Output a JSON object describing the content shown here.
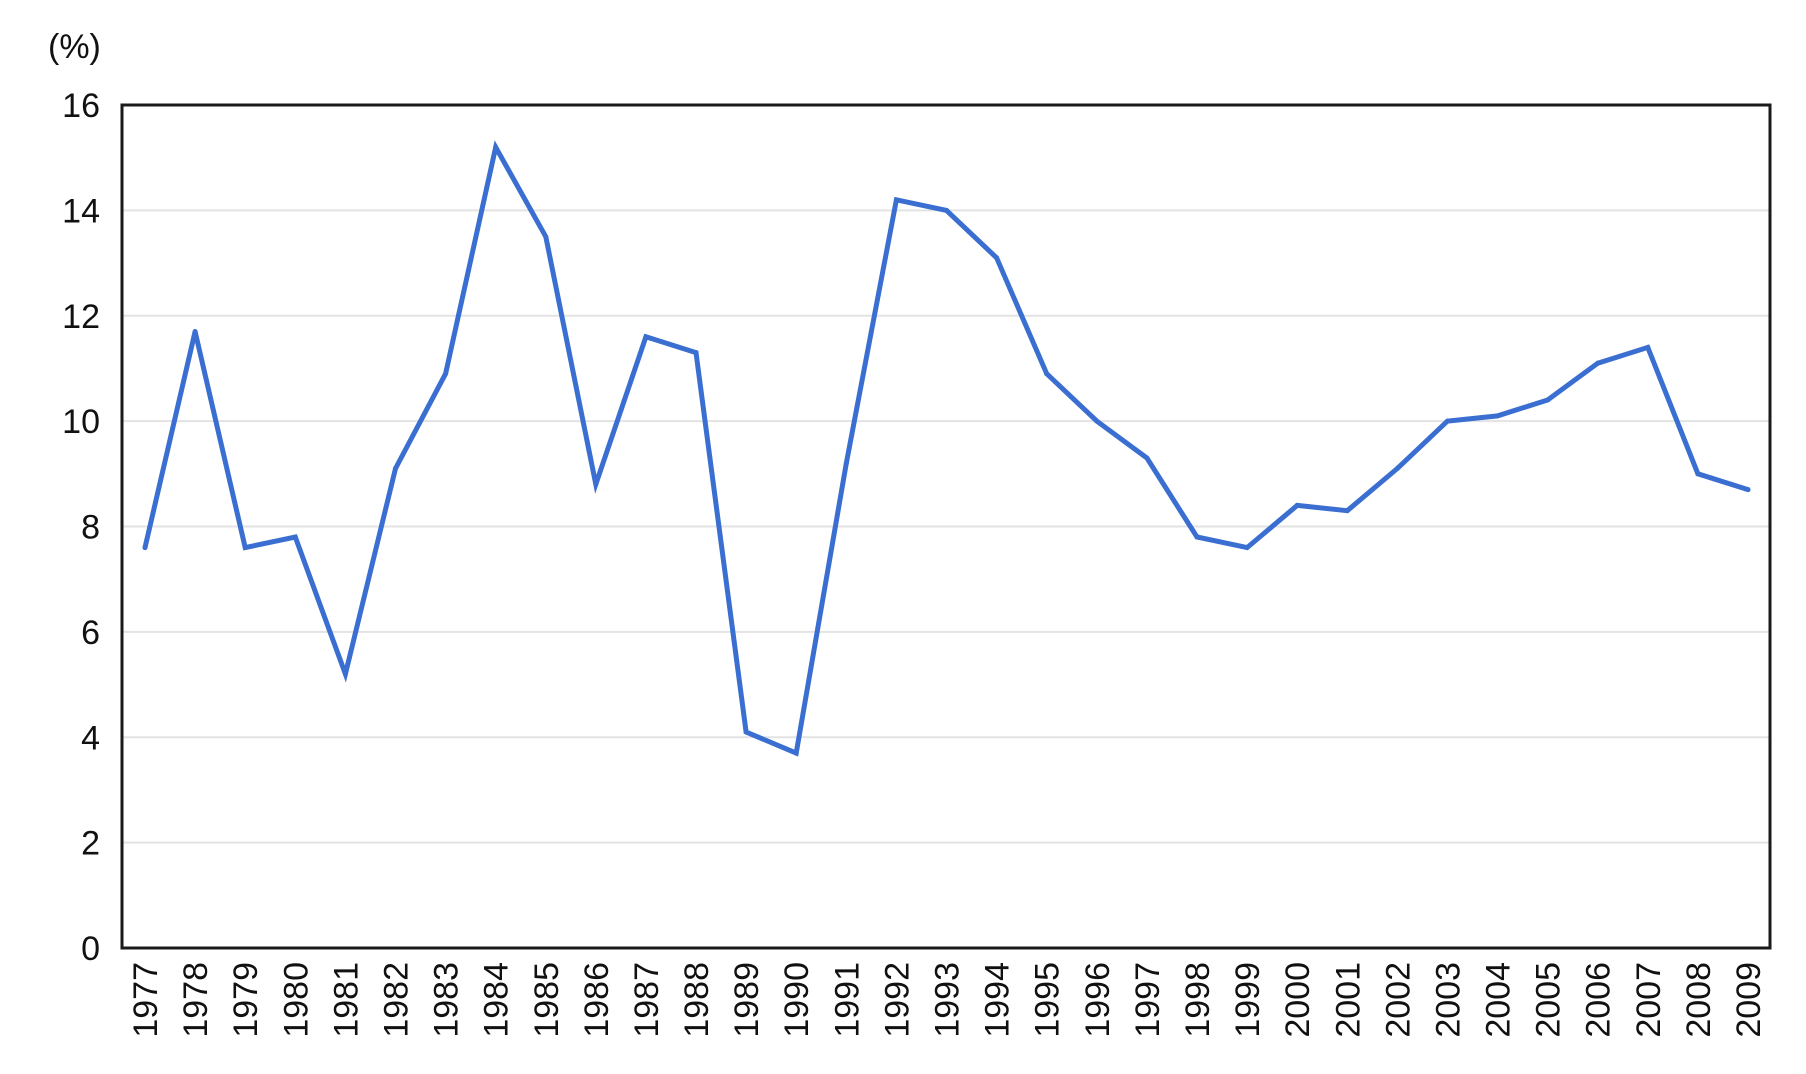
{
  "chart_data": {
    "type": "line",
    "unit_label": "(%)",
    "title": "",
    "xlabel": "",
    "ylabel": "",
    "ylim": [
      0,
      16
    ],
    "yticks": [
      0,
      2,
      4,
      6,
      8,
      10,
      12,
      14,
      16
    ],
    "grid": true,
    "legend": "none",
    "categories": [
      "1977",
      "1978",
      "1979",
      "1980",
      "1981",
      "1982",
      "1983",
      "1984",
      "1985",
      "1986",
      "1987",
      "1988",
      "1989",
      "1990",
      "1991",
      "1992",
      "1993",
      "1994",
      "1995",
      "1996",
      "1997",
      "1998",
      "1999",
      "2000",
      "2001",
      "2002",
      "2003",
      "2004",
      "2005",
      "2006",
      "2007",
      "2008",
      "2009"
    ],
    "series": [
      {
        "color": "#3a6fd1",
        "values": [
          7.6,
          11.7,
          7.6,
          7.8,
          5.2,
          9.1,
          10.9,
          15.2,
          13.5,
          8.8,
          11.6,
          11.3,
          4.1,
          3.7,
          9.2,
          14.2,
          14.0,
          13.1,
          10.9,
          10.0,
          9.3,
          7.8,
          7.6,
          8.4,
          8.3,
          9.1,
          10.0,
          10.1,
          10.4,
          11.1,
          11.4,
          9.0,
          8.7
        ]
      }
    ]
  }
}
